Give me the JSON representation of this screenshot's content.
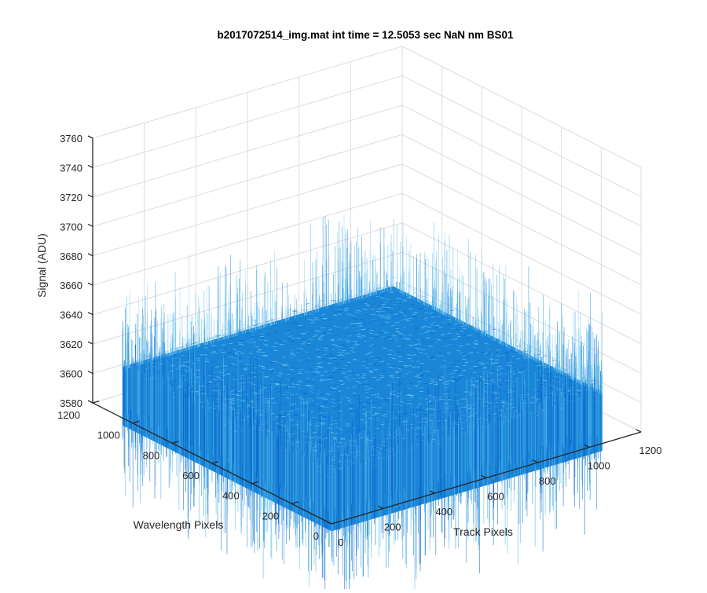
{
  "colors": {
    "background": "#ffffff",
    "axis": "#262626",
    "grid": "#dcdcdc",
    "surface_dark": "#0b63c9",
    "surface_mid": "#1a86d8",
    "surface_light": "#4fb6ea",
    "surface_highlight": "#8fd3f0"
  },
  "chart_data": {
    "type": "surface",
    "title": "b2017072514_img.mat int time = 12.5053 sec  NaN nm BS01",
    "xlabel": "Track Pixels",
    "ylabel": "Wavelength Pixels",
    "zlabel": "Signal (ADU)",
    "xlim": [
      0,
      1200
    ],
    "ylim": [
      0,
      1200
    ],
    "zlim": [
      3580,
      3760
    ],
    "xticks": [
      "0",
      "200",
      "400",
      "600",
      "800",
      "1000",
      "1200"
    ],
    "yticks": [
      "0",
      "200",
      "400",
      "600",
      "800",
      "1000",
      "1200"
    ],
    "zticks": [
      "3580",
      "3600",
      "3620",
      "3640",
      "3660",
      "3680",
      "3700",
      "3720",
      "3740",
      "3760"
    ],
    "grid": true,
    "data_extent": {
      "x": [
        0,
        1050
      ],
      "y": [
        0,
        1050
      ]
    },
    "signal_mean": 3615,
    "signal_noise_range": [
      3590,
      3680
    ]
  }
}
